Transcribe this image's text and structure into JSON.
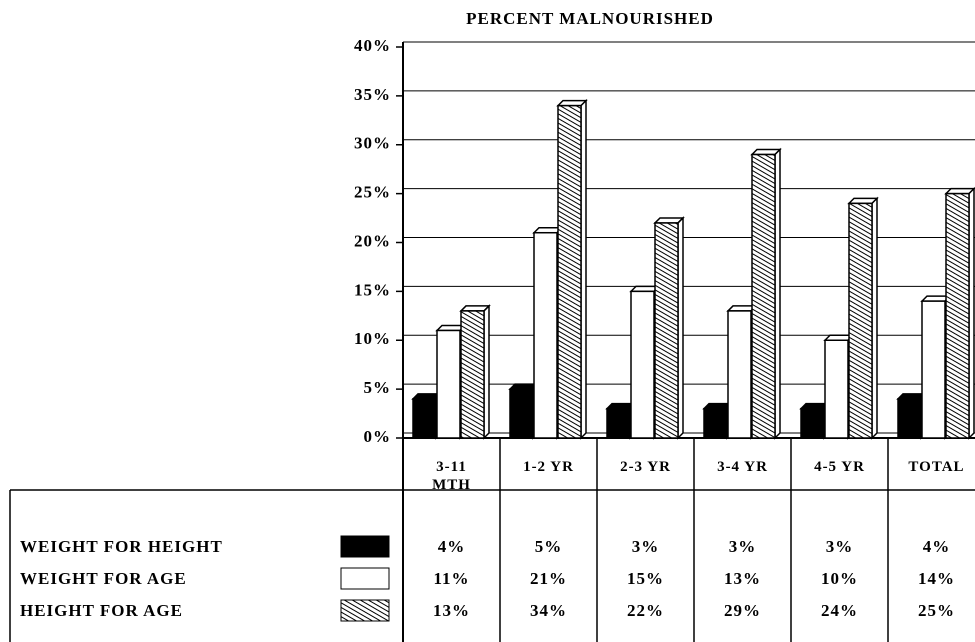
{
  "chart_data": {
    "type": "bar",
    "title": "PERCENT MALNOURISHED",
    "categories": [
      "3-11 MTH",
      "1-2 YR",
      "2-3 YR",
      "3-4 YR",
      "4-5 YR",
      "TOTAL"
    ],
    "series": [
      {
        "name": "WEIGHT FOR HEIGHT",
        "color": "#000000",
        "values": [
          4,
          5,
          3,
          3,
          3,
          4
        ],
        "value_labels": [
          "4%",
          "5%",
          "3%",
          "3%",
          "3%",
          "4%"
        ]
      },
      {
        "name": "WEIGHT FOR AGE",
        "color": "#ffffff",
        "values": [
          11,
          21,
          15,
          13,
          10,
          14
        ],
        "value_labels": [
          "11%",
          "21%",
          "15%",
          "13%",
          "10%",
          "14%"
        ]
      },
      {
        "name": "HEIGHT FOR AGE",
        "color": "#000000",
        "pattern": "diagonal-hatch",
        "values": [
          13,
          34,
          22,
          29,
          24,
          25
        ],
        "value_labels": [
          "13%",
          "34%",
          "22%",
          "29%",
          "24%",
          "25%"
        ]
      }
    ],
    "ylim": [
      0,
      40
    ],
    "yticks": [
      {
        "value": 0,
        "label": "0%"
      },
      {
        "value": 5,
        "label": "5%"
      },
      {
        "value": 10,
        "label": "10%"
      },
      {
        "value": 15,
        "label": "15%"
      },
      {
        "value": 20,
        "label": "20%"
      },
      {
        "value": 25,
        "label": "25%"
      },
      {
        "value": 30,
        "label": "30%"
      },
      {
        "value": 35,
        "label": "35%"
      },
      {
        "value": 40,
        "label": "40%"
      }
    ],
    "grid": true
  }
}
